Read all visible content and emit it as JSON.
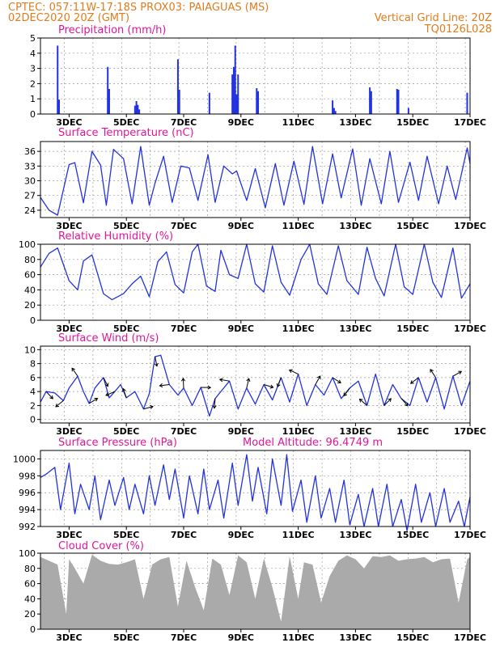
{
  "header": {
    "line1": "CPTEC:   057:11W-17:18S   PROX03: PAIAGUAS (MS)",
    "line2_left": "02DEC2020 20Z (GMT)",
    "line2_right": "Vertical Grid Line: 20Z",
    "line3_right": "TQ0126L028"
  },
  "colors": {
    "header": "#e07c1d",
    "title": "#e0169b",
    "series": "#2233dd",
    "cloud": "#aaaaaa"
  },
  "x_ticks": [
    "3DEC",
    "5DEC",
    "7DEC",
    "9DEC",
    "11DEC",
    "13DEC",
    "15DEC",
    "17DEC"
  ],
  "chart_data": [
    {
      "id": "precip",
      "type": "bar",
      "title": "Precipitation (mm/h)",
      "ylim": [
        0,
        5
      ],
      "yticks": [
        0,
        1,
        2,
        3,
        4,
        5
      ],
      "grid": true,
      "bars": [
        [
          2.6,
          4.5
        ],
        [
          2.65,
          0.95
        ],
        [
          4.35,
          3.1
        ],
        [
          4.4,
          1.65
        ],
        [
          5.3,
          0.55
        ],
        [
          5.35,
          0.85
        ],
        [
          5.4,
          0.6
        ],
        [
          5.45,
          0.3
        ],
        [
          6.8,
          3.6
        ],
        [
          6.85,
          1.6
        ],
        [
          7.9,
          1.4
        ],
        [
          8.7,
          2.6
        ],
        [
          8.75,
          3.1
        ],
        [
          8.8,
          4.5
        ],
        [
          8.85,
          1.3
        ],
        [
          8.9,
          2.6
        ],
        [
          9.55,
          1.7
        ],
        [
          9.6,
          1.5
        ],
        [
          12.2,
          0.9
        ],
        [
          12.25,
          0.4
        ],
        [
          12.3,
          0.2
        ],
        [
          13.5,
          1.75
        ],
        [
          13.55,
          1.5
        ],
        [
          14.45,
          1.65
        ],
        [
          14.5,
          1.6
        ],
        [
          14.85,
          0.4
        ],
        [
          16.9,
          1.4
        ]
      ]
    },
    {
      "id": "temp",
      "type": "line",
      "title": "Surface Temperature (nC)",
      "ylim": [
        22.5,
        38
      ],
      "yticks": [
        24,
        27,
        30,
        33,
        36
      ],
      "grid": true,
      "x": [
        2.0,
        2.3,
        2.6,
        3.0,
        3.2,
        3.5,
        3.8,
        4.1,
        4.3,
        4.55,
        4.9,
        5.2,
        5.5,
        5.8,
        6.0,
        6.3,
        6.6,
        6.9,
        7.2,
        7.5,
        7.85,
        8.1,
        8.4,
        8.7,
        8.85,
        9.2,
        9.5,
        9.85,
        10.2,
        10.5,
        10.85,
        11.2,
        11.5,
        11.85,
        12.2,
        12.5,
        12.9,
        13.2,
        13.5,
        13.9,
        14.2,
        14.5,
        14.9,
        15.2,
        15.5,
        15.9,
        16.2,
        16.5,
        16.9,
        17.0
      ],
      "y": [
        26.6,
        24.0,
        23.0,
        33.3,
        33.7,
        25.5,
        36.0,
        33.2,
        25.0,
        36.4,
        34.5,
        25.3,
        37.0,
        25.0,
        29.5,
        35.0,
        25.6,
        33.0,
        32.6,
        26.0,
        35.3,
        25.6,
        33.0,
        31.4,
        32.0,
        26.0,
        32.5,
        24.5,
        33.5,
        25.0,
        34.0,
        25.2,
        37.0,
        25.3,
        35.5,
        26.5,
        36.5,
        25.0,
        34.5,
        25.3,
        36.0,
        25.6,
        33.8,
        26.0,
        35.0,
        25.3,
        33.0,
        26.2,
        36.7,
        33.5
      ]
    },
    {
      "id": "rh",
      "type": "line",
      "title": "Relative Humidity (%)",
      "ylim": [
        0,
        100
      ],
      "yticks": [
        0,
        20,
        40,
        60,
        80,
        100
      ],
      "grid": true,
      "x": [
        2.0,
        2.3,
        2.6,
        3.0,
        3.3,
        3.5,
        3.8,
        4.2,
        4.5,
        4.9,
        5.2,
        5.5,
        5.8,
        6.1,
        6.4,
        6.7,
        7.0,
        7.3,
        7.5,
        7.8,
        8.1,
        8.3,
        8.6,
        8.9,
        9.2,
        9.5,
        9.8,
        10.1,
        10.4,
        10.7,
        11.1,
        11.4,
        11.7,
        12.0,
        12.4,
        12.7,
        13.1,
        13.4,
        13.7,
        14.0,
        14.4,
        14.7,
        15.0,
        15.4,
        15.7,
        16.0,
        16.4,
        16.7,
        17.0
      ],
      "y": [
        70,
        88,
        95,
        52,
        40,
        78,
        86,
        35,
        27,
        35,
        48,
        58,
        31,
        77,
        90,
        47,
        36,
        90,
        100,
        45,
        38,
        92,
        60,
        55,
        100,
        48,
        37,
        98,
        50,
        33,
        80,
        100,
        48,
        34,
        98,
        52,
        34,
        96,
        55,
        32,
        100,
        44,
        34,
        100,
        50,
        30,
        95,
        29,
        48
      ]
    },
    {
      "id": "wind",
      "type": "line",
      "title": "Surface Wind (m/s)",
      "ylim": [
        -0.5,
        10.5
      ],
      "yticks": [
        0,
        2,
        4,
        6,
        8,
        10
      ],
      "grid": true,
      "x": [
        2.0,
        2.2,
        2.5,
        2.8,
        3.0,
        3.3,
        3.5,
        3.7,
        3.9,
        4.2,
        4.4,
        4.6,
        4.8,
        5.0,
        5.3,
        5.6,
        5.8,
        6.0,
        6.2,
        6.5,
        6.8,
        7.0,
        7.3,
        7.6,
        7.9,
        8.1,
        8.3,
        8.6,
        8.9,
        9.2,
        9.5,
        9.8,
        10.1,
        10.4,
        10.7,
        11.0,
        11.3,
        11.6,
        11.9,
        12.2,
        12.5,
        12.8,
        13.1,
        13.4,
        13.7,
        14.0,
        14.3,
        14.6,
        14.9,
        15.2,
        15.5,
        15.8,
        16.1,
        16.4,
        16.7,
        17.0
      ],
      "y": [
        2.5,
        4.0,
        3.8,
        2.7,
        4.5,
        6.2,
        4.0,
        2.3,
        4.5,
        6.0,
        3.1,
        4.0,
        5.0,
        3.1,
        4.0,
        1.5,
        3.7,
        9.0,
        9.2,
        5.0,
        3.5,
        4.5,
        2.0,
        4.6,
        0.5,
        3.0,
        4.0,
        5.5,
        1.5,
        4.5,
        2.2,
        5.0,
        2.8,
        6.0,
        2.5,
        6.5,
        2.0,
        5.0,
        3.5,
        6.0,
        3.0,
        4.5,
        5.5,
        2.0,
        6.5,
        2.0,
        5.0,
        3.0,
        2.0,
        6.0,
        2.5,
        6.0,
        1.5,
        6.2,
        2.0,
        5.5
      ]
    },
    {
      "id": "pres",
      "type": "line",
      "title": "Surface Pressure (hPa)",
      "extra_label": "Model Altitude: 96.4749 m",
      "ylim": [
        992,
        1001
      ],
      "yticks": [
        992,
        994,
        996,
        998,
        1000
      ],
      "grid": true,
      "x": [
        2.0,
        2.2,
        2.5,
        2.7,
        3.0,
        3.2,
        3.4,
        3.7,
        3.9,
        4.1,
        4.4,
        4.6,
        4.9,
        5.1,
        5.3,
        5.6,
        5.8,
        6.0,
        6.3,
        6.5,
        6.7,
        7.0,
        7.2,
        7.5,
        7.7,
        7.9,
        8.2,
        8.4,
        8.7,
        8.9,
        9.2,
        9.4,
        9.6,
        9.9,
        10.1,
        10.4,
        10.6,
        10.8,
        11.1,
        11.3,
        11.6,
        11.8,
        12.1,
        12.3,
        12.6,
        12.8,
        13.1,
        13.3,
        13.6,
        13.8,
        14.1,
        14.3,
        14.6,
        14.8,
        15.1,
        15.3,
        15.6,
        15.8,
        16.1,
        16.3,
        16.6,
        16.8,
        17.0
      ],
      "y": [
        997.8,
        998.2,
        999.0,
        994.0,
        999.5,
        993.5,
        997.0,
        994.0,
        998.0,
        992.8,
        997.5,
        994.5,
        997.8,
        994.0,
        997.0,
        993.5,
        998.0,
        994.5,
        999.3,
        995.2,
        998.8,
        993.0,
        998.0,
        993.5,
        998.8,
        994.0,
        997.5,
        993.0,
        999.5,
        994.5,
        1000.5,
        995.0,
        999.0,
        993.5,
        1000.0,
        994.5,
        1000.5,
        993.8,
        997.5,
        992.5,
        998.0,
        993.0,
        996.5,
        992.5,
        997.5,
        992.2,
        995.8,
        992.0,
        996.5,
        992.0,
        997.0,
        992.0,
        995.2,
        991.5,
        997.0,
        992.5,
        996.0,
        992.0,
        996.5,
        992.5,
        995.0,
        992.0,
        995.5
      ]
    },
    {
      "id": "cloud",
      "type": "bar",
      "title": "Cloud Cover (%)",
      "ylim": [
        0,
        100
      ],
      "yticks": [
        0,
        20,
        40,
        60,
        80,
        100
      ],
      "grid": true,
      "x": [
        2.0,
        2.3,
        2.6,
        2.9,
        3.0,
        3.2,
        3.5,
        3.8,
        4.1,
        4.4,
        4.7,
        5.0,
        5.3,
        5.6,
        5.9,
        6.2,
        6.5,
        6.8,
        7.1,
        7.4,
        7.7,
        8.0,
        8.3,
        8.6,
        8.9,
        9.2,
        9.5,
        9.8,
        10.1,
        10.4,
        10.7,
        11.0,
        11.2,
        11.5,
        11.8,
        12.1,
        12.4,
        12.7,
        13.0,
        13.3,
        13.6,
        13.9,
        14.2,
        14.5,
        14.8,
        15.1,
        15.4,
        15.7,
        16.0,
        16.3,
        16.6,
        16.9,
        17.0
      ],
      "values": [
        95,
        90,
        85,
        20,
        92,
        80,
        60,
        98,
        90,
        86,
        85,
        88,
        92,
        40,
        85,
        92,
        95,
        30,
        90,
        55,
        25,
        93,
        85,
        45,
        97,
        88,
        40,
        93,
        55,
        10,
        96,
        40,
        88,
        85,
        35,
        70,
        90,
        97,
        92,
        80,
        96,
        95,
        97,
        90,
        92,
        93,
        95,
        88,
        92,
        93,
        35,
        92,
        95
      ]
    }
  ]
}
